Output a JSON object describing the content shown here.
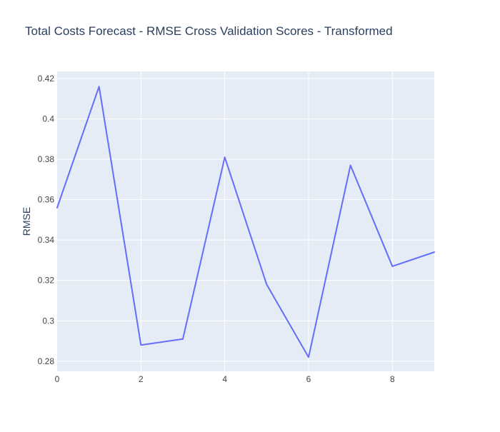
{
  "chart_data": {
    "type": "line",
    "title": "Total Costs Forecast - RMSE Cross Validation Scores - Transformed",
    "xlabel": "",
    "ylabel": "RMSE",
    "xlim": [
      0,
      9
    ],
    "ylim": [
      0.275,
      0.4235
    ],
    "x_ticks": [
      0,
      2,
      4,
      6,
      8
    ],
    "x_tick_labels": [
      "0",
      "2",
      "4",
      "6",
      "8"
    ],
    "y_ticks": [
      0.28,
      0.3,
      0.32,
      0.34,
      0.36,
      0.38,
      0.4,
      0.42
    ],
    "y_tick_labels": [
      "0.28",
      "0.3",
      "0.32",
      "0.34",
      "0.36",
      "0.38",
      "0.4",
      "0.42"
    ],
    "grid": true,
    "colors": {
      "background": "#e5ecf6",
      "line": "#636efa",
      "grid": "#ffffff",
      "text": "#2a3f5f",
      "tick_text": "#444444"
    },
    "series": [
      {
        "x": [
          0,
          1,
          2,
          3,
          4,
          5,
          6,
          7,
          8,
          9
        ],
        "values": [
          0.356,
          0.416,
          0.288,
          0.291,
          0.381,
          0.318,
          0.282,
          0.377,
          0.327,
          0.334
        ]
      }
    ]
  }
}
